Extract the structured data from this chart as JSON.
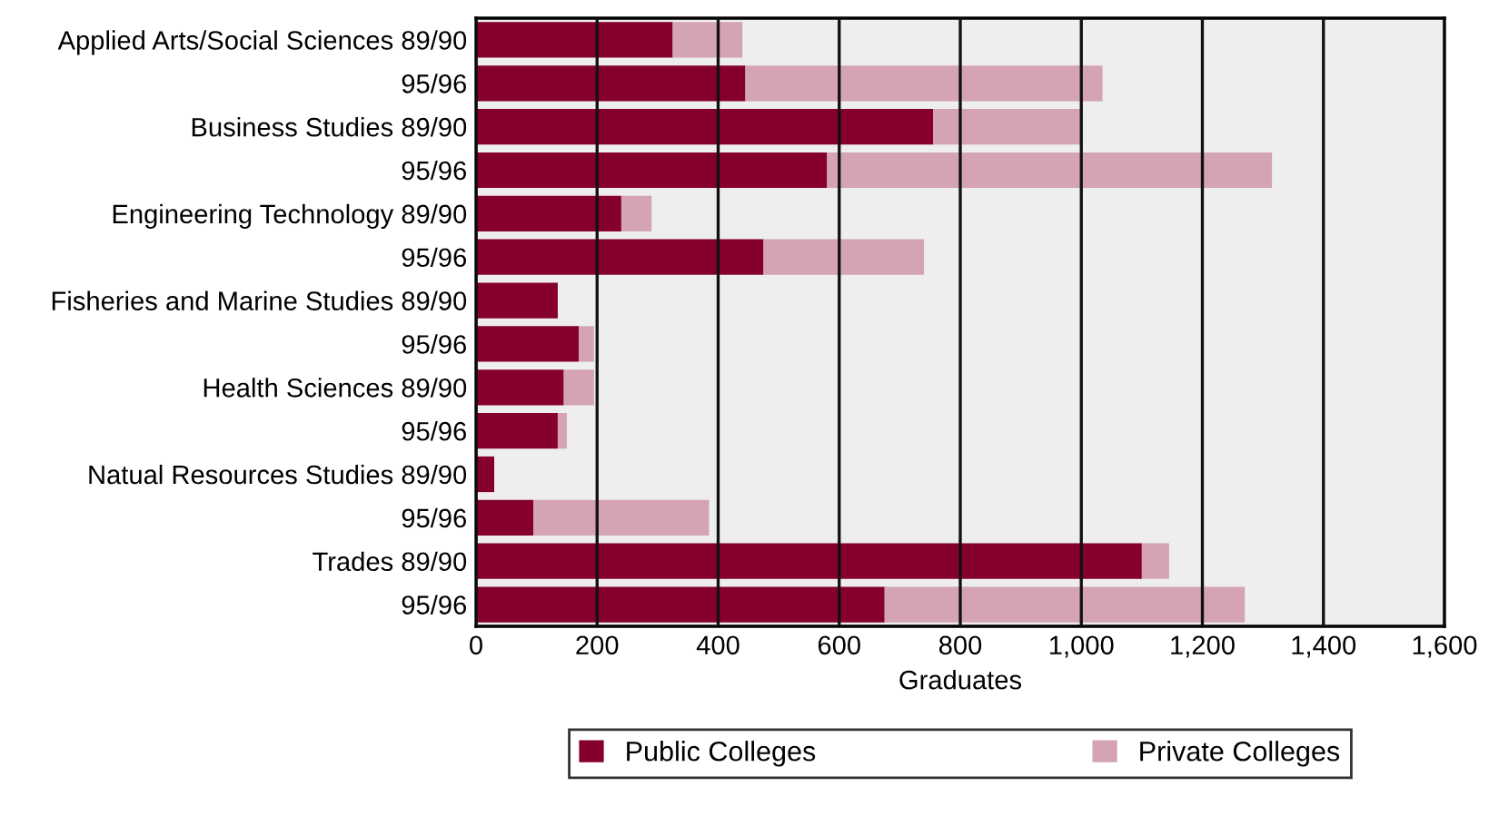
{
  "chart_data": {
    "type": "bar",
    "orientation": "horizontal",
    "stacked": true,
    "xlabel": "Graduates",
    "categories": [
      "Applied Arts/Social Sciences 89/90",
      "95/96",
      "Business Studies 89/90",
      "95/96",
      "Engineering Technology 89/90",
      "95/96",
      "Fisheries and Marine Studies 89/90",
      "95/96",
      "Health Sciences 89/90",
      "95/96",
      "Natual Resources Studies 89/90",
      "95/96",
      "Trades 89/90",
      "95/96"
    ],
    "series": [
      {
        "name": "Public Colleges",
        "color": "#85002b",
        "values": [
          325,
          445,
          755,
          580,
          240,
          475,
          135,
          170,
          145,
          135,
          30,
          95,
          1100,
          675
        ]
      },
      {
        "name": "Private Colleges",
        "color": "#d4a3b5",
        "values": [
          115,
          590,
          245,
          735,
          50,
          265,
          0,
          25,
          50,
          15,
          0,
          290,
          45,
          595
        ]
      }
    ],
    "xlim": [
      0,
      1600
    ],
    "xticks": [
      0,
      200,
      400,
      600,
      800,
      {
        "value": 1000,
        "label": "1,000"
      },
      {
        "value": 1200,
        "label": "1,200"
      },
      {
        "value": 1400,
        "label": "1,400"
      },
      {
        "value": 1600,
        "label": "1,600"
      }
    ],
    "grid": "x",
    "legend": "bottom"
  }
}
